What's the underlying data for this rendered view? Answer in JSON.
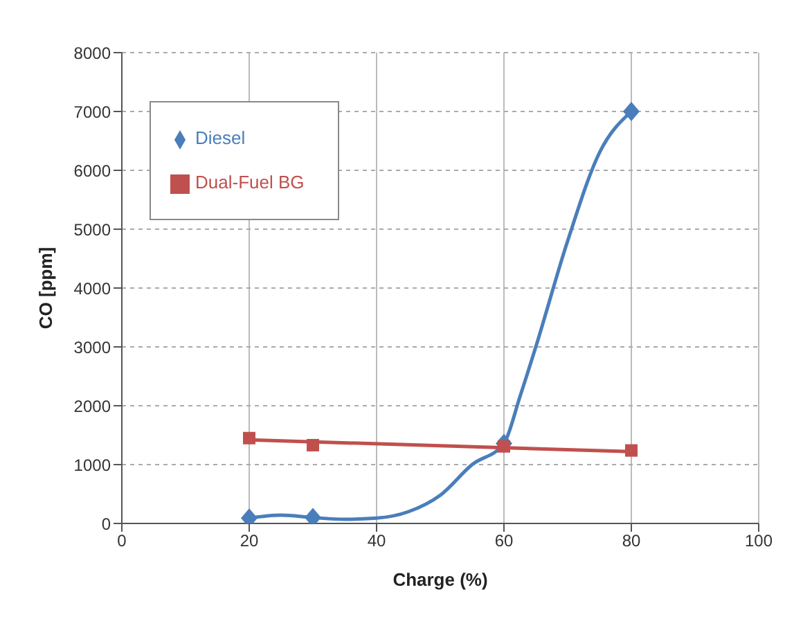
{
  "chart_data": {
    "type": "scatter",
    "xlabel": "Charge (%)",
    "ylabel": "CO  [ppm]",
    "xlim": [
      0,
      100
    ],
    "xticks": [
      0,
      20,
      40,
      60,
      80,
      100
    ],
    "ylim": [
      0,
      8000
    ],
    "yticks": [
      0,
      1000,
      2000,
      3000,
      4000,
      5000,
      6000,
      7000,
      8000
    ],
    "grid": true,
    "legend": "top left",
    "series": [
      {
        "name": "Diesel",
        "marker": "diamond",
        "color": "#4a7ebb",
        "x": [
          20,
          30,
          60,
          80
        ],
        "values": [
          90,
          100,
          1360,
          7000
        ]
      },
      {
        "type": "line",
        "marker": "none",
        "color": "#4a7ebb",
        "x": [
          20,
          25,
          30,
          35,
          40,
          45,
          50,
          55,
          60,
          62.5,
          65,
          70,
          75,
          80
        ],
        "values": [
          90,
          140,
          100,
          70,
          90,
          200,
          480,
          1000,
          1360,
          2150,
          3000,
          4800,
          6300,
          7000
        ]
      },
      {
        "name": "Dual-Fuel BG",
        "marker": "square",
        "color": "#c0504d",
        "x": [
          20,
          30,
          60,
          80
        ],
        "values": [
          1450,
          1330,
          1310,
          1240
        ]
      },
      {
        "type": "line",
        "marker": "none",
        "color": "#c0504d",
        "x": [
          20,
          80
        ],
        "values": [
          1420,
          1220
        ]
      }
    ]
  }
}
